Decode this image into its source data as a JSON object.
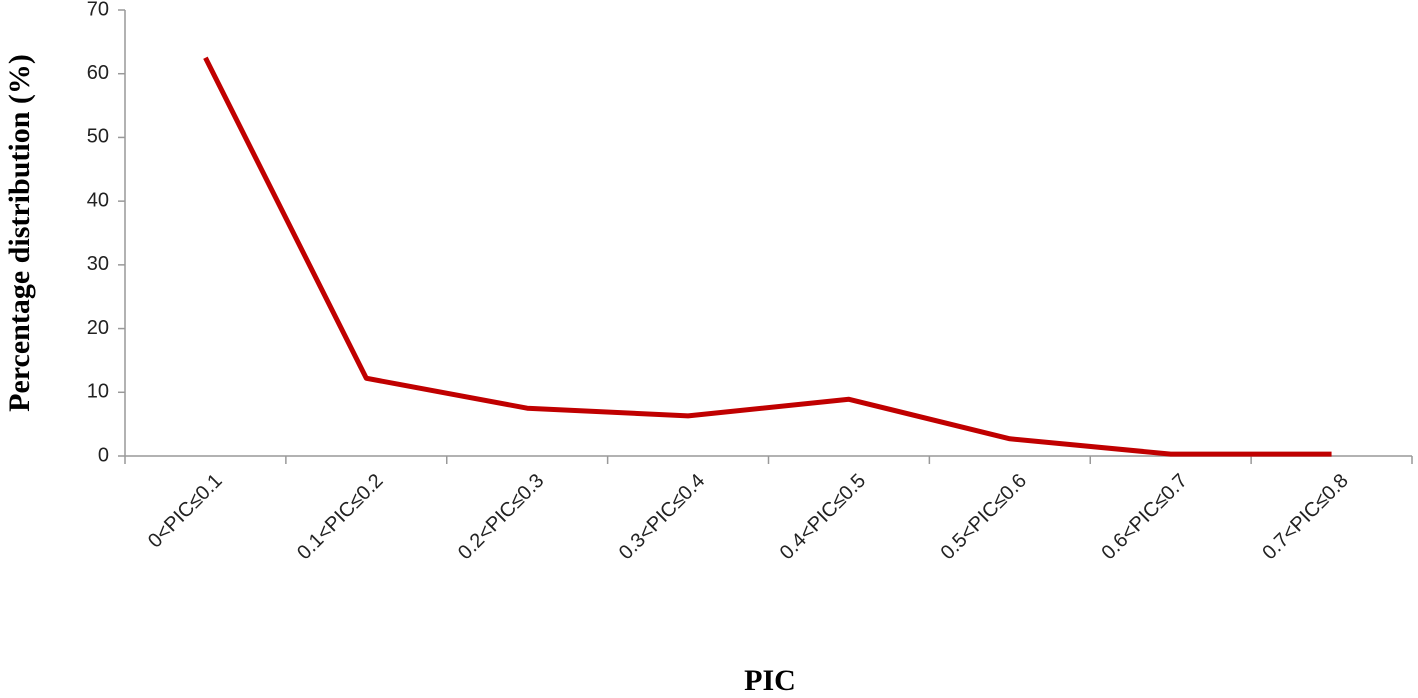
{
  "chart_data": {
    "type": "line",
    "xlabel": "PIC",
    "ylabel": "Percentage distribution  (%)",
    "categories": [
      "0<PIC≤0.1",
      "0.1<PIC≤0.2",
      "0.2<PIC≤0.3",
      "0.3<PIC≤0.4",
      "0.4<PIC≤0.5",
      "0.5<PIC≤0.6",
      "0.6<PIC≤0.7",
      "0.7<PIC≤0.8"
    ],
    "values": [
      62.5,
      12.2,
      7.5,
      6.3,
      8.9,
      2.7,
      0.3,
      0.3
    ],
    "color": "#c00000",
    "ylim": [
      0,
      70
    ],
    "yticks": [
      0,
      10,
      20,
      30,
      40,
      50,
      60,
      70
    ]
  }
}
